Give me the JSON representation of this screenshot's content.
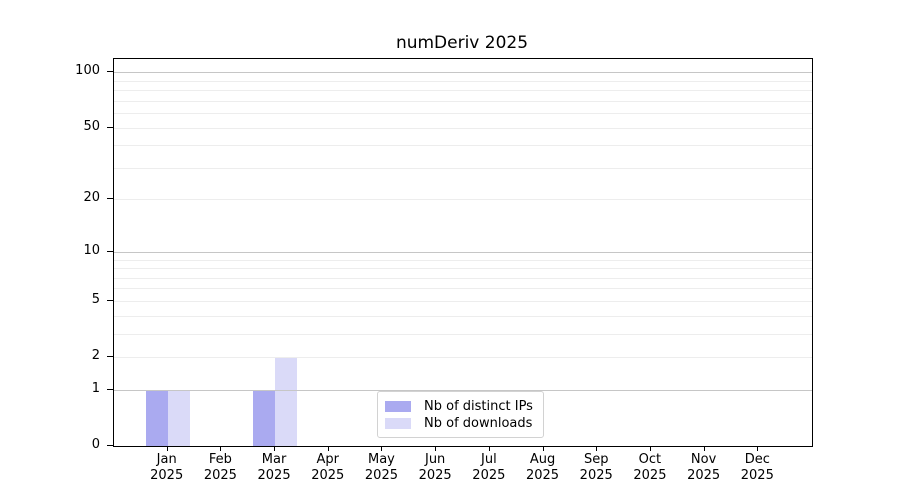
{
  "title": "numDeriv 2025",
  "colors": {
    "background": "#ffffff",
    "axis": "#000000",
    "text": "#000000",
    "grid_major": "#c6c6c6",
    "grid_minor": "#ededed",
    "legend_border": "#d2d2d2",
    "bar_distinct_ips": "#aaaaf0",
    "bar_downloads": "#dadaf8"
  },
  "chart_data": {
    "type": "bar",
    "title": "numDeriv 2025",
    "categories": [
      "Jan 2025",
      "Feb 2025",
      "Mar 2025",
      "Apr 2025",
      "May 2025",
      "Jun 2025",
      "Jul 2025",
      "Aug 2025",
      "Sep 2025",
      "Oct 2025",
      "Nov 2025",
      "Dec 2025"
    ],
    "series": [
      {
        "name": "Nb of distinct IPs",
        "color": "#aaaaf0",
        "values": [
          1,
          0,
          1,
          0,
          0,
          0,
          0,
          0,
          0,
          0,
          0,
          0
        ]
      },
      {
        "name": "Nb of downloads",
        "color": "#dadaf8",
        "values": [
          1,
          0,
          2,
          0,
          0,
          0,
          0,
          0,
          0,
          0,
          0,
          0
        ]
      }
    ],
    "xlabel": "",
    "ylabel": "",
    "y_axis": {
      "scale": "log1p",
      "ticks": [
        0,
        1,
        2,
        5,
        10,
        20,
        50,
        100
      ],
      "max_value": 118,
      "major_gridlines": [
        1,
        10,
        100
      ],
      "minor_gridlines": [
        2,
        3,
        4,
        5,
        6,
        7,
        8,
        9,
        20,
        30,
        40,
        50,
        60,
        70,
        80,
        90
      ],
      "grid": true
    },
    "legend": {
      "position": "inside-bottom-center",
      "entries": [
        "Nb of distinct IPs",
        "Nb of downloads"
      ]
    }
  }
}
